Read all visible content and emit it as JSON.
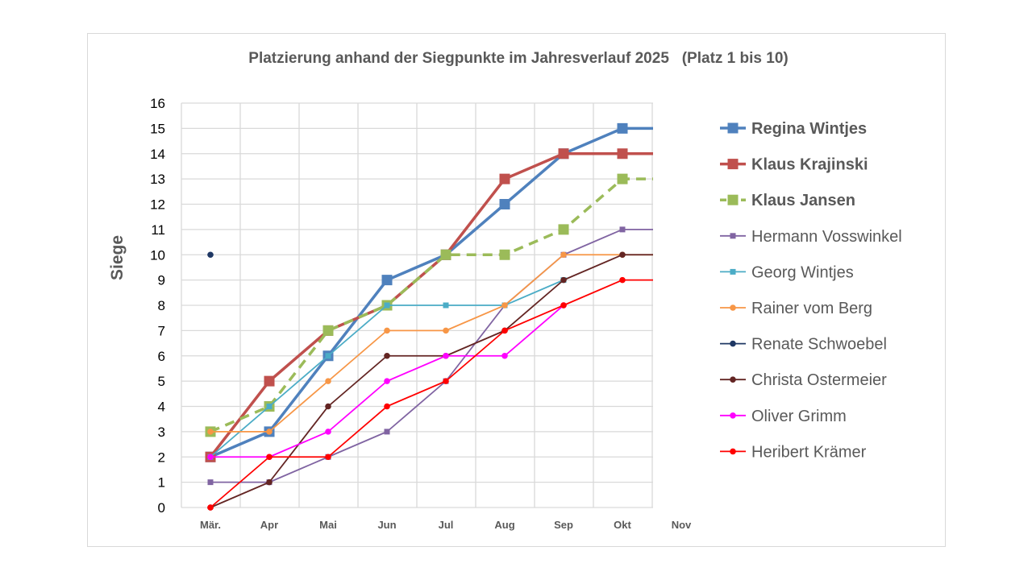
{
  "chart_data": {
    "type": "line",
    "title": "Platzierung anhand der Siegpunkte im Jahresverlauf 2025   (Platz 1 bis 10)",
    "ylabel": "Siege",
    "xlabel": "",
    "ylim": [
      0,
      16
    ],
    "yticks": [
      "0",
      "1",
      "2",
      "3",
      "4",
      "5",
      "6",
      "7",
      "8",
      "9",
      "10",
      "11",
      "12",
      "13",
      "14",
      "15",
      "16"
    ],
    "categories": [
      "Mär.",
      "Apr",
      "Mai",
      "Jun",
      "Jul",
      "Aug",
      "Sep",
      "Okt",
      "Nov"
    ],
    "grid": true,
    "legend": "right",
    "series": [
      {
        "name": "Regina Wintjes",
        "color": "#4f81bd",
        "marker": "square",
        "bold": true,
        "dash": false,
        "width": 3.5,
        "values": [
          2,
          3,
          6,
          9,
          10,
          12,
          14,
          15,
          15
        ]
      },
      {
        "name": "Klaus Krajinski",
        "color": "#c0504d",
        "marker": "square",
        "bold": true,
        "dash": false,
        "width": 3.5,
        "values": [
          2,
          5,
          7,
          8,
          10,
          13,
          14,
          14,
          14
        ]
      },
      {
        "name": "Klaus Jansen",
        "color": "#9bbb59",
        "marker": "square",
        "bold": true,
        "dash": true,
        "width": 3.5,
        "values": [
          3,
          4,
          7,
          8,
          10,
          10,
          11,
          13,
          13
        ]
      },
      {
        "name": "Hermann Vosswinkel",
        "color": "#8064a2",
        "marker": "square",
        "bold": false,
        "dash": false,
        "width": 1.8,
        "values": [
          1,
          1,
          2,
          3,
          5,
          8,
          10,
          11,
          11
        ]
      },
      {
        "name": "Georg Wintjes",
        "color": "#4bacc6",
        "marker": "square",
        "bold": false,
        "dash": false,
        "width": 1.8,
        "values": [
          2,
          4,
          6,
          8,
          8,
          8,
          9,
          null,
          null
        ]
      },
      {
        "name": "Rainer vom Berg",
        "color": "#f79646",
        "marker": "circle",
        "bold": false,
        "dash": false,
        "width": 1.8,
        "values": [
          3,
          3,
          5,
          7,
          7,
          8,
          10,
          10,
          10
        ]
      },
      {
        "name": "Renate Schwoebel",
        "color": "#1f3864",
        "marker": "circle",
        "bold": false,
        "dash": false,
        "width": 1.8,
        "values": [
          10,
          null,
          null,
          null,
          null,
          null,
          null,
          null,
          null
        ]
      },
      {
        "name": "Christa Ostermeier",
        "color": "#632523",
        "marker": "circle",
        "bold": false,
        "dash": false,
        "width": 1.8,
        "values": [
          0,
          1,
          4,
          6,
          6,
          7,
          9,
          10,
          10
        ]
      },
      {
        "name": "Oliver Grimm",
        "color": "#ff00ff",
        "marker": "circle",
        "bold": false,
        "dash": false,
        "width": 1.8,
        "values": [
          2,
          2,
          3,
          5,
          6,
          6,
          8,
          null,
          null
        ]
      },
      {
        "name": "Heribert Krämer",
        "color": "#ff0000",
        "marker": "circle",
        "bold": false,
        "dash": false,
        "width": 1.8,
        "values": [
          0,
          2,
          2,
          4,
          5,
          7,
          8,
          9,
          9
        ]
      }
    ]
  }
}
